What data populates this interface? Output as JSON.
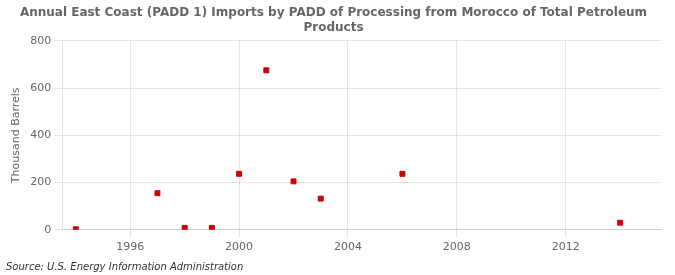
{
  "chart_data": {
    "type": "scatter",
    "title": "Annual East Coast (PADD 1) Imports by PADD of Processing from Morocco of Total Petroleum\nProducts",
    "ylabel": "Thousand Barrels",
    "source": "Source: U.S. Energy Information Administration",
    "x": [
      1994,
      1997,
      1998,
      1999,
      2000,
      2001,
      2002,
      2003,
      2006,
      2014
    ],
    "values": [
      2,
      155,
      8,
      8,
      237,
      675,
      205,
      132,
      237,
      30
    ],
    "color": "#cc0000",
    "marker": "square",
    "xlim": [
      1993.5,
      2015.5
    ],
    "ylim": [
      0,
      800
    ],
    "xticks": [
      1996,
      2000,
      2004,
      2008,
      2012
    ],
    "yticks": [
      0,
      200,
      400,
      600,
      800
    ],
    "grid": true
  }
}
